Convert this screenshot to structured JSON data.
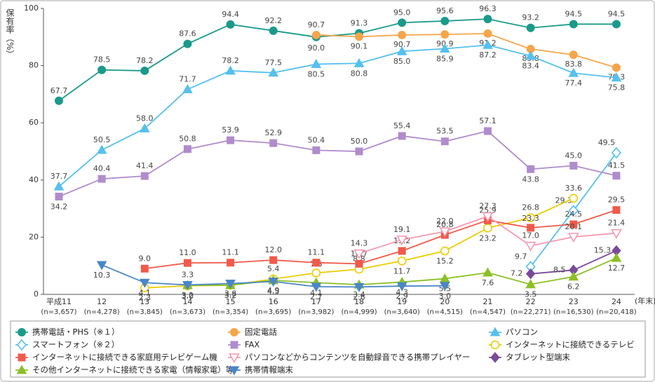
{
  "chart_data": {
    "type": "line",
    "y_label": "保有率（%）",
    "x_unit": "(年末)",
    "categories": [
      "平成11",
      "12",
      "13",
      "14",
      "15",
      "16",
      "17",
      "18",
      "19",
      "20",
      "21",
      "22",
      "23",
      "24"
    ],
    "sample_sizes": [
      "(n=3,657)",
      "(n=4,278)",
      "(n=3,845)",
      "(n=3,673)",
      "(n=3,354)",
      "(n=3,695)",
      "(n=3,982)",
      "(n=4,999)",
      "(n=3,640)",
      "(n=4,515)",
      "(n=4,547)",
      "(n=22,271)",
      "(n=16,530)",
      "(n=20,418)"
    ],
    "ylim": [
      0,
      100
    ],
    "yticks": [
      0,
      20,
      40,
      60,
      80,
      100
    ],
    "series": [
      {
        "name": "携帯電話・PHS（※１）",
        "color": "#1a9a8a",
        "marker": "circle",
        "hollow": false,
        "values": [
          67.7,
          78.5,
          78.2,
          87.6,
          94.4,
          92.2,
          90.0,
          91.3,
          95.0,
          95.6,
          96.3,
          93.2,
          94.5,
          94.5
        ],
        "value_labels": [
          "67.7",
          "78.5",
          "78.2",
          "87.6",
          "94.4",
          "92.2",
          "90.0",
          "91.3",
          "95.0",
          "95.6",
          "96.3",
          "93.2",
          "94.5",
          "94.5"
        ]
      },
      {
        "name": "固定電話",
        "color": "#f5a54a",
        "marker": "circle",
        "hollow": false,
        "values": [
          null,
          null,
          null,
          null,
          null,
          null,
          90.7,
          90.1,
          90.7,
          90.9,
          91.2,
          85.8,
          83.8,
          79.3
        ],
        "value_labels": [
          null,
          null,
          null,
          null,
          null,
          null,
          "90.7",
          "90.1",
          "90.7",
          "90.9",
          "91.2",
          "85.8",
          "83.8",
          "79.3"
        ]
      },
      {
        "name": "パソコン",
        "color": "#55c0ee",
        "marker": "triangle",
        "hollow": false,
        "values": [
          37.7,
          50.5,
          58.0,
          71.7,
          78.2,
          77.5,
          80.5,
          80.8,
          85.0,
          85.9,
          87.2,
          83.4,
          77.4,
          75.8
        ],
        "value_labels": [
          "37.7",
          "50.5",
          "58.0",
          "71.7",
          "78.2",
          "77.5",
          "80.5",
          "80.8",
          "85.0",
          "85.9",
          "87.2",
          "83.4",
          "77.4",
          "75.8"
        ]
      },
      {
        "name": "スマートフォン（※２）",
        "color": "#55c0ee",
        "marker": "diamond",
        "hollow": true,
        "values": [
          null,
          null,
          null,
          null,
          null,
          null,
          null,
          null,
          null,
          null,
          null,
          9.7,
          29.3,
          49.5
        ],
        "value_labels": [
          null,
          null,
          null,
          null,
          null,
          null,
          null,
          null,
          null,
          null,
          null,
          "9.7",
          "29.3",
          "49.5"
        ]
      },
      {
        "name": "FAX",
        "color": "#b08ccc",
        "marker": "square",
        "hollow": false,
        "values": [
          34.2,
          40.4,
          41.4,
          50.8,
          53.9,
          52.9,
          50.4,
          50.0,
          55.4,
          53.5,
          57.1,
          43.8,
          45.0,
          41.5
        ],
        "value_labels": [
          "34.2",
          "40.4",
          "41.4",
          "50.8",
          "53.9",
          "52.9",
          "50.4",
          "50.0",
          "55.4",
          "53.5",
          "57.1",
          "43.8",
          "45.0",
          "41.5"
        ]
      },
      {
        "name": "インターネットに接続できるテレビ",
        "color": "#eccc00",
        "marker": "circle",
        "hollow": true,
        "values": [
          null,
          null,
          2.3,
          3.0,
          3.2,
          5.4,
          7.5,
          8.8,
          11.7,
          15.2,
          23.2,
          26.8,
          33.6,
          null
        ],
        "value_labels": [
          null,
          null,
          "2.3",
          "3.0",
          "3.2",
          "5.4",
          "7.5",
          "8.8",
          "11.7",
          "15.2",
          "23.2",
          "26.8",
          "33.6",
          null
        ]
      },
      {
        "name": "インターネットに接続できる家庭用テレビゲーム機",
        "color": "#f05a4a",
        "marker": "square",
        "hollow": false,
        "values": [
          null,
          null,
          9.0,
          11.0,
          11.1,
          12.0,
          11.1,
          10.7,
          15.2,
          20.8,
          25.9,
          23.3,
          24.5,
          29.5
        ],
        "value_labels": [
          null,
          null,
          "9.0",
          "11.0",
          "11.1",
          "12.0",
          "11.1",
          "10.7",
          "15.2",
          "20.8",
          "25.9",
          "23.3",
          "24.5",
          "29.5"
        ]
      },
      {
        "name": "パソコンなどからコンテンツを自動録音できる携帯プレイヤー",
        "color": "#f59ab0",
        "marker": "down",
        "hollow": true,
        "values": [
          null,
          null,
          null,
          null,
          null,
          null,
          null,
          14.3,
          19.1,
          22.0,
          27.3,
          17.0,
          20.1,
          21.4
        ],
        "value_labels": [
          null,
          null,
          null,
          null,
          null,
          null,
          null,
          "14.3",
          "19.1",
          "22.0",
          "27.3",
          "17.0",
          "20.1",
          "21.4"
        ]
      },
      {
        "name": "タブレット型端末",
        "color": "#7a4a9a",
        "marker": "diamond",
        "hollow": false,
        "values": [
          null,
          null,
          null,
          null,
          null,
          null,
          null,
          null,
          null,
          null,
          null,
          7.2,
          8.5,
          15.3
        ],
        "value_labels": [
          null,
          null,
          null,
          null,
          null,
          null,
          null,
          null,
          null,
          null,
          null,
          "7.2",
          "8.5",
          "15.3"
        ]
      },
      {
        "name": "その他インターネットに接続できる家電（情報家電）等",
        "color": "#8cbf26",
        "marker": "triangle",
        "hollow": false,
        "values": [
          null,
          null,
          null,
          3.2,
          3.2,
          4.9,
          4.1,
          3.4,
          4.3,
          5.5,
          7.6,
          3.5,
          6.2,
          12.7
        ],
        "value_labels": [
          null,
          null,
          null,
          "3.2",
          "3.2",
          "4.9",
          "4.1",
          "3.4",
          "4.3",
          "5.5",
          "7.6",
          "3.5",
          "6.2",
          "12.7"
        ]
      },
      {
        "name": "携帯情報端末",
        "color": "#4a86c8",
        "marker": "down",
        "hollow": false,
        "values": [
          null,
          10.3,
          4.1,
          3.3,
          3.8,
          4.5,
          2.7,
          2.6,
          2.9,
          3.0,
          null,
          null,
          null,
          null
        ],
        "value_labels": [
          null,
          "10.3",
          "4.1",
          "3.3",
          "3.8",
          "4.5",
          "2.7",
          "2.6",
          "2.9",
          "3.0",
          null,
          null,
          null,
          null
        ]
      }
    ]
  }
}
